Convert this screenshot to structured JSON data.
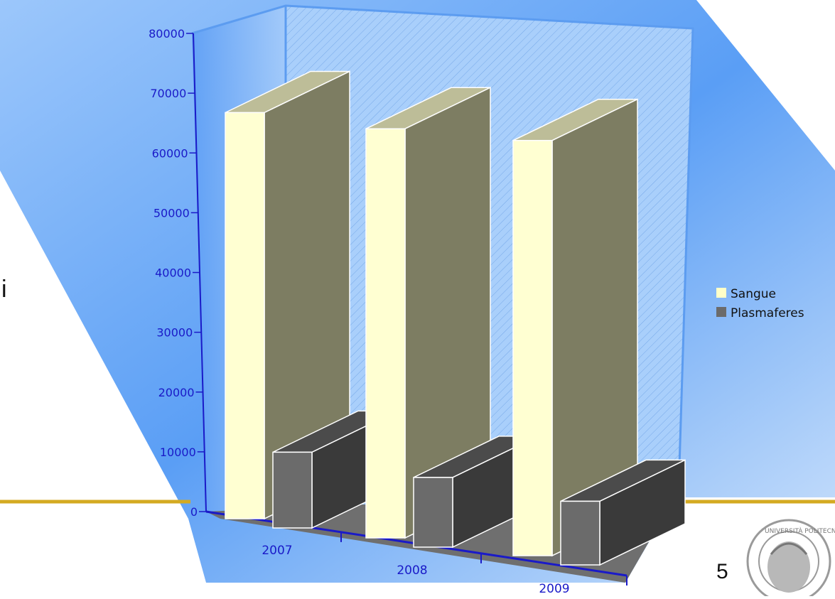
{
  "slide": {
    "left_char": "i",
    "page_number": "5"
  },
  "colors": {
    "sangue_front": "#ffffd2",
    "sangue_top": "#bdbd98",
    "plasma_front": "#6b6b6b",
    "plasma_dark": "#3a3a3a",
    "wall": "#66a8f7",
    "gold_line": "#d4aa22",
    "axis": "#1a1ac8"
  },
  "chart_data": {
    "type": "bar",
    "categories": [
      "2007",
      "2008",
      "2009"
    ],
    "series": [
      {
        "name": "Sangue",
        "values": [
          67000,
          67500,
          68500
        ]
      },
      {
        "name": "Plasmaferes",
        "values": [
          12500,
          11500,
          10500
        ]
      }
    ],
    "ylim": [
      0,
      80000
    ],
    "yticks": [
      "0",
      "10000",
      "20000",
      "30000",
      "40000",
      "50000",
      "60000",
      "70000",
      "80000"
    ],
    "legend": {
      "position": "right",
      "entries": [
        "Sangue",
        "Plasmaferes"
      ]
    },
    "style": "3d-clustered"
  }
}
